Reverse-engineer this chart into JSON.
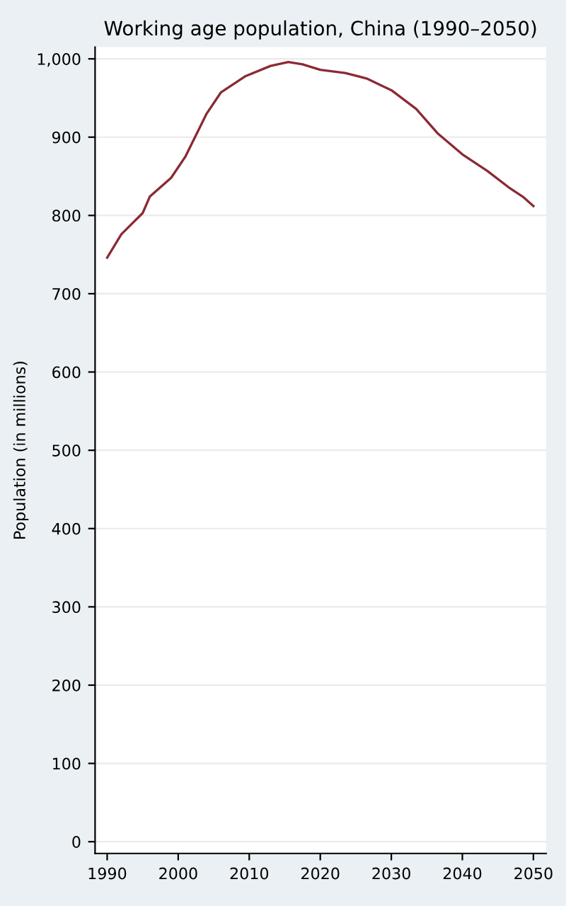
{
  "chart_data": {
    "type": "line",
    "title": "Working age population, China (1990–2050)",
    "ylabel": "Population (in millions)",
    "x": [
      1990,
      1992,
      1995,
      1996,
      1999,
      2001,
      2004,
      2006,
      2009.5,
      2013,
      2015.5,
      2017.5,
      2020,
      2023.5,
      2026.5,
      2030,
      2033.5,
      2036.5,
      2040,
      2043.5,
      2046.5,
      2048.5,
      2050
    ],
    "series": [
      {
        "color": "#8b2a35",
        "values": [
          746,
          776,
          803,
          824,
          848,
          875,
          930,
          957,
          978,
          991,
          996,
          993,
          986,
          982,
          975,
          960,
          936,
          905,
          878,
          857,
          836,
          824,
          812
        ]
      }
    ],
    "xlim": [
      1988.3,
      2051.8
    ],
    "ylim": [
      -15,
      1015
    ],
    "xticks": [
      1990,
      2000,
      2010,
      2020,
      2030,
      2040,
      2050
    ],
    "yticks": [
      0,
      100,
      200,
      300,
      400,
      500,
      600,
      700,
      800,
      900,
      {
        "value": 1000,
        "label": "1,000"
      }
    ],
    "grid": "y",
    "marker": "none",
    "line_style": "solid"
  }
}
